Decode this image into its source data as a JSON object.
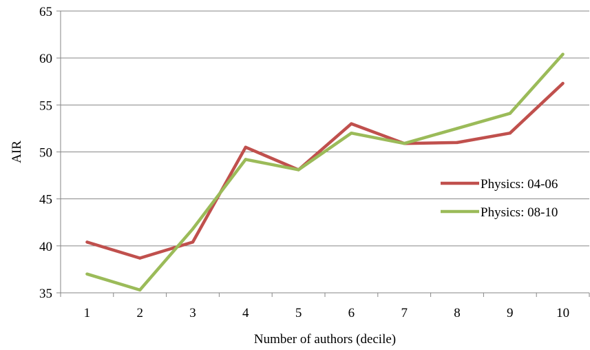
{
  "chart_data": {
    "type": "line",
    "xlabel": "Number of authors (decile)",
    "ylabel": "AIR",
    "ylim": [
      35,
      65
    ],
    "yticks": [
      35,
      40,
      45,
      50,
      55,
      60,
      65
    ],
    "categories": [
      "1",
      "2",
      "3",
      "4",
      "5",
      "6",
      "7",
      "8",
      "9",
      "10"
    ],
    "grid": "horizontal",
    "legend_position": "right",
    "series": [
      {
        "name": "Physics: 04-06",
        "color": "#C0504D",
        "values": [
          40.4,
          38.7,
          40.4,
          50.5,
          48.1,
          53.0,
          50.9,
          51.0,
          52.0,
          57.3
        ]
      },
      {
        "name": "Physics: 08-10",
        "color": "#9BBB59",
        "values": [
          37.0,
          35.3,
          41.8,
          49.2,
          48.1,
          52.0,
          50.9,
          52.5,
          54.1,
          60.4
        ]
      }
    ]
  }
}
